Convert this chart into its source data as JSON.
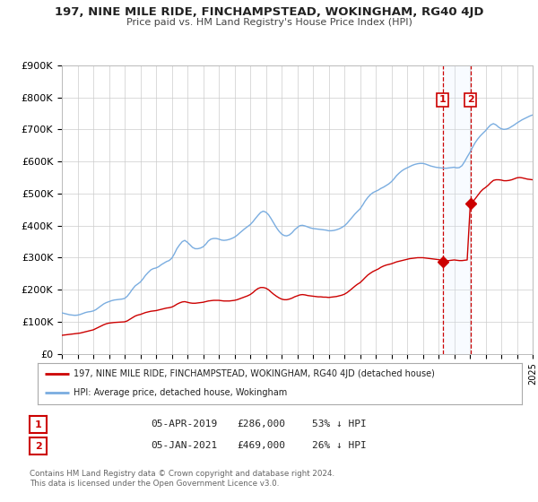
{
  "title": "197, NINE MILE RIDE, FINCHAMPSTEAD, WOKINGHAM, RG40 4JD",
  "subtitle": "Price paid vs. HM Land Registry's House Price Index (HPI)",
  "ylim": [
    0,
    900000
  ],
  "xlim_start": 1995,
  "xlim_end": 2025,
  "yticks": [
    0,
    100000,
    200000,
    300000,
    400000,
    500000,
    600000,
    700000,
    800000,
    900000
  ],
  "ytick_labels": [
    "£0",
    "£100K",
    "£200K",
    "£300K",
    "£400K",
    "£500K",
    "£600K",
    "£700K",
    "£800K",
    "£900K"
  ],
  "xticks": [
    1995,
    1996,
    1997,
    1998,
    1999,
    2000,
    2001,
    2002,
    2003,
    2004,
    2005,
    2006,
    2007,
    2008,
    2009,
    2010,
    2011,
    2012,
    2013,
    2014,
    2015,
    2016,
    2017,
    2018,
    2019,
    2020,
    2021,
    2022,
    2023,
    2024,
    2025
  ],
  "hpi_color": "#7aade0",
  "price_color": "#cc0000",
  "marker_color": "#cc0000",
  "vline_color": "#cc0000",
  "highlight_color": "#ddeeff",
  "sale1_x": 2019.27,
  "sale1_y": 286000,
  "sale2_x": 2021.03,
  "sale2_y": 469000,
  "legend_label_price": "197, NINE MILE RIDE, FINCHAMPSTEAD, WOKINGHAM, RG40 4JD (detached house)",
  "legend_label_hpi": "HPI: Average price, detached house, Wokingham",
  "table_row1": [
    "1",
    "05-APR-2019",
    "£286,000",
    "53% ↓ HPI"
  ],
  "table_row2": [
    "2",
    "05-JAN-2021",
    "£469,000",
    "26% ↓ HPI"
  ],
  "footer": "Contains HM Land Registry data © Crown copyright and database right 2024.\nThis data is licensed under the Open Government Licence v3.0.",
  "bg_color": "#ffffff",
  "grid_color": "#cccccc",
  "hpi_data": [
    [
      1995.0,
      128000
    ],
    [
      1995.08,
      127000
    ],
    [
      1995.17,
      126000
    ],
    [
      1995.25,
      125000
    ],
    [
      1995.33,
      124000
    ],
    [
      1995.42,
      123000
    ],
    [
      1995.5,
      122000
    ],
    [
      1995.58,
      121500
    ],
    [
      1995.67,
      121000
    ],
    [
      1995.75,
      120500
    ],
    [
      1995.83,
      120200
    ],
    [
      1996.0,
      121000
    ],
    [
      1996.17,
      123000
    ],
    [
      1996.33,
      126000
    ],
    [
      1996.5,
      129000
    ],
    [
      1996.67,
      131000
    ],
    [
      1996.83,
      132000
    ],
    [
      1997.0,
      134000
    ],
    [
      1997.17,
      138000
    ],
    [
      1997.33,
      144000
    ],
    [
      1997.5,
      150000
    ],
    [
      1997.67,
      156000
    ],
    [
      1997.83,
      160000
    ],
    [
      1998.0,
      163000
    ],
    [
      1998.17,
      166000
    ],
    [
      1998.33,
      168000
    ],
    [
      1998.5,
      169000
    ],
    [
      1998.67,
      170000
    ],
    [
      1998.83,
      171000
    ],
    [
      1999.0,
      173000
    ],
    [
      1999.17,
      180000
    ],
    [
      1999.33,
      190000
    ],
    [
      1999.5,
      202000
    ],
    [
      1999.67,
      212000
    ],
    [
      1999.83,
      218000
    ],
    [
      2000.0,
      224000
    ],
    [
      2000.17,
      234000
    ],
    [
      2000.33,
      245000
    ],
    [
      2000.5,
      254000
    ],
    [
      2000.67,
      262000
    ],
    [
      2000.83,
      266000
    ],
    [
      2001.0,
      268000
    ],
    [
      2001.17,
      272000
    ],
    [
      2001.33,
      278000
    ],
    [
      2001.5,
      283000
    ],
    [
      2001.67,
      288000
    ],
    [
      2001.83,
      291000
    ],
    [
      2002.0,
      298000
    ],
    [
      2002.17,
      312000
    ],
    [
      2002.33,
      328000
    ],
    [
      2002.5,
      340000
    ],
    [
      2002.67,
      350000
    ],
    [
      2002.83,
      354000
    ],
    [
      2003.0,
      348000
    ],
    [
      2003.17,
      340000
    ],
    [
      2003.33,
      332000
    ],
    [
      2003.5,
      328000
    ],
    [
      2003.67,
      328000
    ],
    [
      2003.83,
      330000
    ],
    [
      2004.0,
      334000
    ],
    [
      2004.17,
      342000
    ],
    [
      2004.33,
      352000
    ],
    [
      2004.5,
      358000
    ],
    [
      2004.67,
      360000
    ],
    [
      2004.83,
      360000
    ],
    [
      2005.0,
      358000
    ],
    [
      2005.17,
      355000
    ],
    [
      2005.33,
      354000
    ],
    [
      2005.5,
      355000
    ],
    [
      2005.67,
      357000
    ],
    [
      2005.83,
      360000
    ],
    [
      2006.0,
      364000
    ],
    [
      2006.17,
      370000
    ],
    [
      2006.33,
      377000
    ],
    [
      2006.5,
      384000
    ],
    [
      2006.67,
      391000
    ],
    [
      2006.83,
      397000
    ],
    [
      2007.0,
      403000
    ],
    [
      2007.17,
      412000
    ],
    [
      2007.33,
      422000
    ],
    [
      2007.5,
      432000
    ],
    [
      2007.67,
      441000
    ],
    [
      2007.83,
      445000
    ],
    [
      2008.0,
      442000
    ],
    [
      2008.17,
      434000
    ],
    [
      2008.33,
      422000
    ],
    [
      2008.5,
      408000
    ],
    [
      2008.67,
      394000
    ],
    [
      2008.83,
      383000
    ],
    [
      2009.0,
      374000
    ],
    [
      2009.17,
      369000
    ],
    [
      2009.33,
      368000
    ],
    [
      2009.5,
      371000
    ],
    [
      2009.67,
      378000
    ],
    [
      2009.83,
      387000
    ],
    [
      2010.0,
      394000
    ],
    [
      2010.17,
      400000
    ],
    [
      2010.33,
      401000
    ],
    [
      2010.5,
      399000
    ],
    [
      2010.67,
      396000
    ],
    [
      2010.83,
      393000
    ],
    [
      2011.0,
      391000
    ],
    [
      2011.17,
      390000
    ],
    [
      2011.33,
      389000
    ],
    [
      2011.5,
      388000
    ],
    [
      2011.67,
      387000
    ],
    [
      2011.83,
      386000
    ],
    [
      2012.0,
      384000
    ],
    [
      2012.17,
      384000
    ],
    [
      2012.33,
      385000
    ],
    [
      2012.5,
      387000
    ],
    [
      2012.67,
      390000
    ],
    [
      2012.83,
      394000
    ],
    [
      2013.0,
      399000
    ],
    [
      2013.17,
      407000
    ],
    [
      2013.33,
      416000
    ],
    [
      2013.5,
      426000
    ],
    [
      2013.67,
      436000
    ],
    [
      2013.83,
      444000
    ],
    [
      2014.0,
      452000
    ],
    [
      2014.17,
      464000
    ],
    [
      2014.33,
      477000
    ],
    [
      2014.5,
      488000
    ],
    [
      2014.67,
      497000
    ],
    [
      2014.83,
      503000
    ],
    [
      2015.0,
      507000
    ],
    [
      2015.17,
      511000
    ],
    [
      2015.33,
      516000
    ],
    [
      2015.5,
      520000
    ],
    [
      2015.67,
      525000
    ],
    [
      2015.83,
      530000
    ],
    [
      2016.0,
      537000
    ],
    [
      2016.17,
      546000
    ],
    [
      2016.33,
      556000
    ],
    [
      2016.5,
      564000
    ],
    [
      2016.67,
      571000
    ],
    [
      2016.83,
      576000
    ],
    [
      2017.0,
      580000
    ],
    [
      2017.17,
      584000
    ],
    [
      2017.33,
      588000
    ],
    [
      2017.5,
      591000
    ],
    [
      2017.67,
      593000
    ],
    [
      2017.83,
      594000
    ],
    [
      2018.0,
      594000
    ],
    [
      2018.17,
      592000
    ],
    [
      2018.33,
      589000
    ],
    [
      2018.5,
      586000
    ],
    [
      2018.67,
      584000
    ],
    [
      2018.83,
      582000
    ],
    [
      2019.0,
      581000
    ],
    [
      2019.17,
      580000
    ],
    [
      2019.33,
      579000
    ],
    [
      2019.5,
      579000
    ],
    [
      2019.67,
      580000
    ],
    [
      2019.83,
      581000
    ],
    [
      2020.0,
      582000
    ],
    [
      2020.17,
      580000
    ],
    [
      2020.33,
      581000
    ],
    [
      2020.5,
      587000
    ],
    [
      2020.67,
      600000
    ],
    [
      2020.83,
      614000
    ],
    [
      2021.0,
      628000
    ],
    [
      2021.17,
      644000
    ],
    [
      2021.33,
      658000
    ],
    [
      2021.5,
      670000
    ],
    [
      2021.67,
      680000
    ],
    [
      2021.83,
      688000
    ],
    [
      2022.0,
      696000
    ],
    [
      2022.17,
      706000
    ],
    [
      2022.33,
      714000
    ],
    [
      2022.5,
      718000
    ],
    [
      2022.67,
      714000
    ],
    [
      2022.83,
      707000
    ],
    [
      2023.0,
      702000
    ],
    [
      2023.17,
      700000
    ],
    [
      2023.33,
      701000
    ],
    [
      2023.5,
      704000
    ],
    [
      2023.67,
      709000
    ],
    [
      2023.83,
      714000
    ],
    [
      2024.0,
      720000
    ],
    [
      2024.17,
      725000
    ],
    [
      2024.33,
      730000
    ],
    [
      2024.5,
      734000
    ],
    [
      2024.67,
      738000
    ],
    [
      2024.83,
      742000
    ],
    [
      2025.0,
      745000
    ]
  ],
  "price_data": [
    [
      1995.0,
      58000
    ],
    [
      1995.17,
      59000
    ],
    [
      1995.33,
      60000
    ],
    [
      1995.5,
      61000
    ],
    [
      1995.67,
      62000
    ],
    [
      1995.83,
      63000
    ],
    [
      1996.0,
      64000
    ],
    [
      1996.17,
      65000
    ],
    [
      1996.33,
      67000
    ],
    [
      1996.5,
      69000
    ],
    [
      1996.67,
      71000
    ],
    [
      1996.83,
      73000
    ],
    [
      1997.0,
      75000
    ],
    [
      1997.17,
      79000
    ],
    [
      1997.33,
      83000
    ],
    [
      1997.5,
      87000
    ],
    [
      1997.67,
      91000
    ],
    [
      1997.83,
      94000
    ],
    [
      1998.0,
      96000
    ],
    [
      1998.17,
      97000
    ],
    [
      1998.33,
      98000
    ],
    [
      1998.5,
      98500
    ],
    [
      1998.67,
      99000
    ],
    [
      1998.83,
      99500
    ],
    [
      1999.0,
      100000
    ],
    [
      1999.17,
      103000
    ],
    [
      1999.33,
      108000
    ],
    [
      1999.5,
      113000
    ],
    [
      1999.67,
      118000
    ],
    [
      1999.83,
      121000
    ],
    [
      2000.0,
      123000
    ],
    [
      2000.17,
      126000
    ],
    [
      2000.33,
      129000
    ],
    [
      2000.5,
      131000
    ],
    [
      2000.67,
      133000
    ],
    [
      2000.83,
      134000
    ],
    [
      2001.0,
      135000
    ],
    [
      2001.17,
      137000
    ],
    [
      2001.33,
      139000
    ],
    [
      2001.5,
      141000
    ],
    [
      2001.67,
      143000
    ],
    [
      2001.83,
      144000
    ],
    [
      2002.0,
      146000
    ],
    [
      2002.17,
      150000
    ],
    [
      2002.33,
      155000
    ],
    [
      2002.5,
      159000
    ],
    [
      2002.67,
      162000
    ],
    [
      2002.83,
      163000
    ],
    [
      2003.0,
      161000
    ],
    [
      2003.17,
      159000
    ],
    [
      2003.33,
      158000
    ],
    [
      2003.5,
      158000
    ],
    [
      2003.67,
      159000
    ],
    [
      2003.83,
      160000
    ],
    [
      2004.0,
      161000
    ],
    [
      2004.17,
      163000
    ],
    [
      2004.33,
      165000
    ],
    [
      2004.5,
      166000
    ],
    [
      2004.67,
      167000
    ],
    [
      2004.83,
      167000
    ],
    [
      2005.0,
      167000
    ],
    [
      2005.17,
      166000
    ],
    [
      2005.33,
      165000
    ],
    [
      2005.5,
      165000
    ],
    [
      2005.67,
      165000
    ],
    [
      2005.83,
      166000
    ],
    [
      2006.0,
      167000
    ],
    [
      2006.17,
      169000
    ],
    [
      2006.33,
      172000
    ],
    [
      2006.5,
      175000
    ],
    [
      2006.67,
      178000
    ],
    [
      2006.83,
      181000
    ],
    [
      2007.0,
      185000
    ],
    [
      2007.17,
      191000
    ],
    [
      2007.33,
      198000
    ],
    [
      2007.5,
      204000
    ],
    [
      2007.67,
      207000
    ],
    [
      2007.83,
      207000
    ],
    [
      2008.0,
      205000
    ],
    [
      2008.17,
      200000
    ],
    [
      2008.33,
      193000
    ],
    [
      2008.5,
      186000
    ],
    [
      2008.67,
      180000
    ],
    [
      2008.83,
      175000
    ],
    [
      2009.0,
      171000
    ],
    [
      2009.17,
      169000
    ],
    [
      2009.33,
      169000
    ],
    [
      2009.5,
      171000
    ],
    [
      2009.67,
      174000
    ],
    [
      2009.83,
      178000
    ],
    [
      2010.0,
      181000
    ],
    [
      2010.17,
      184000
    ],
    [
      2010.33,
      185000
    ],
    [
      2010.5,
      184000
    ],
    [
      2010.67,
      182000
    ],
    [
      2010.83,
      181000
    ],
    [
      2011.0,
      180000
    ],
    [
      2011.17,
      179000
    ],
    [
      2011.33,
      178000
    ],
    [
      2011.5,
      178000
    ],
    [
      2011.67,
      177000
    ],
    [
      2011.83,
      177000
    ],
    [
      2012.0,
      176000
    ],
    [
      2012.17,
      177000
    ],
    [
      2012.33,
      178000
    ],
    [
      2012.5,
      179000
    ],
    [
      2012.67,
      181000
    ],
    [
      2012.83,
      183000
    ],
    [
      2013.0,
      186000
    ],
    [
      2013.17,
      191000
    ],
    [
      2013.33,
      197000
    ],
    [
      2013.5,
      204000
    ],
    [
      2013.67,
      211000
    ],
    [
      2013.83,
      217000
    ],
    [
      2014.0,
      222000
    ],
    [
      2014.17,
      230000
    ],
    [
      2014.33,
      238000
    ],
    [
      2014.5,
      246000
    ],
    [
      2014.67,
      252000
    ],
    [
      2014.83,
      257000
    ],
    [
      2015.0,
      261000
    ],
    [
      2015.17,
      265000
    ],
    [
      2015.33,
      270000
    ],
    [
      2015.5,
      274000
    ],
    [
      2015.67,
      277000
    ],
    [
      2015.83,
      279000
    ],
    [
      2016.0,
      281000
    ],
    [
      2016.17,
      284000
    ],
    [
      2016.33,
      287000
    ],
    [
      2016.5,
      289000
    ],
    [
      2016.67,
      291000
    ],
    [
      2016.83,
      293000
    ],
    [
      2017.0,
      295000
    ],
    [
      2017.17,
      297000
    ],
    [
      2017.33,
      298000
    ],
    [
      2017.5,
      299000
    ],
    [
      2017.67,
      300000
    ],
    [
      2017.83,
      300000
    ],
    [
      2018.0,
      300000
    ],
    [
      2018.17,
      299000
    ],
    [
      2018.33,
      298000
    ],
    [
      2018.5,
      297000
    ],
    [
      2018.67,
      296000
    ],
    [
      2018.83,
      295000
    ],
    [
      2019.0,
      294000
    ],
    [
      2019.17,
      292000
    ],
    [
      2019.27,
      286000
    ],
    [
      2019.5,
      290000
    ],
    [
      2019.67,
      291000
    ],
    [
      2019.83,
      292000
    ],
    [
      2020.0,
      293000
    ],
    [
      2020.17,
      292000
    ],
    [
      2020.33,
      291000
    ],
    [
      2020.5,
      291000
    ],
    [
      2020.67,
      292000
    ],
    [
      2020.83,
      293000
    ],
    [
      2021.03,
      469000
    ],
    [
      2021.25,
      478000
    ],
    [
      2021.5,
      494000
    ],
    [
      2021.67,
      505000
    ],
    [
      2021.83,
      513000
    ],
    [
      2022.0,
      519000
    ],
    [
      2022.17,
      526000
    ],
    [
      2022.33,
      534000
    ],
    [
      2022.5,
      541000
    ],
    [
      2022.67,
      543000
    ],
    [
      2022.83,
      543000
    ],
    [
      2023.0,
      542000
    ],
    [
      2023.17,
      540000
    ],
    [
      2023.33,
      540000
    ],
    [
      2023.5,
      541000
    ],
    [
      2023.67,
      543000
    ],
    [
      2023.83,
      546000
    ],
    [
      2024.0,
      549000
    ],
    [
      2024.17,
      550000
    ],
    [
      2024.33,
      549000
    ],
    [
      2024.5,
      547000
    ],
    [
      2024.67,
      545000
    ],
    [
      2024.83,
      544000
    ],
    [
      2025.0,
      543000
    ]
  ]
}
